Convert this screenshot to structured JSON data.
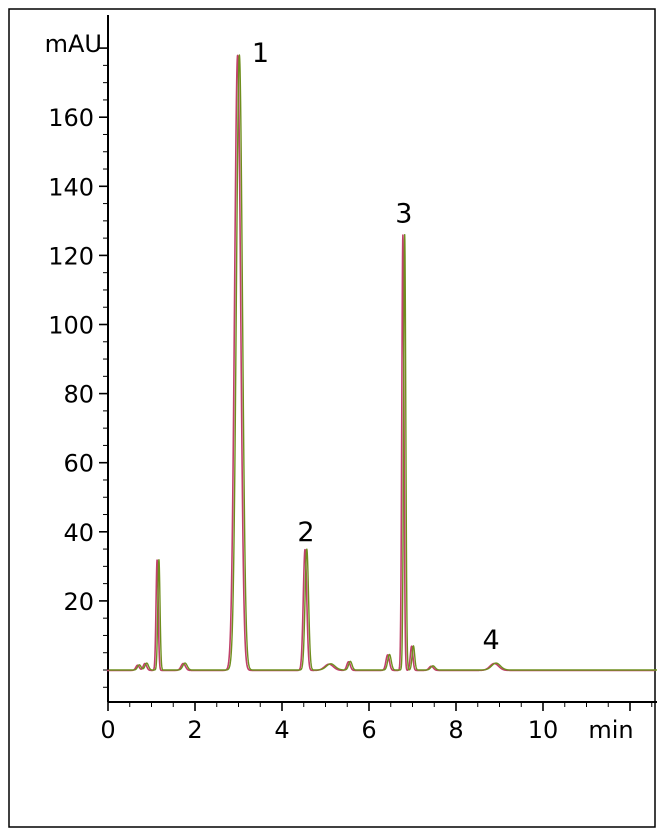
{
  "chart_data": {
    "type": "line",
    "title": "",
    "xlabel": "min",
    "ylabel": "mAU",
    "xlim": [
      0,
      12.6
    ],
    "ylim": [
      -9,
      185
    ],
    "x_ticks": [
      0,
      2,
      4,
      6,
      8,
      10
    ],
    "y_ticks": [
      20,
      40,
      60,
      80,
      100,
      120,
      140,
      160
    ],
    "grid": false,
    "colors": {
      "trace_a": "#c0406a",
      "trace_b": "#6f8f1e",
      "axis": "#000000"
    },
    "baseline": 0,
    "peaks": [
      {
        "x": 0.7,
        "y": 1.5,
        "sigma": 0.04,
        "label": ""
      },
      {
        "x": 0.87,
        "y": 2,
        "sigma": 0.04,
        "label": ""
      },
      {
        "x": 1.15,
        "y": 32,
        "sigma": 0.025,
        "label": ""
      },
      {
        "x": 1.75,
        "y": 2,
        "sigma": 0.05,
        "label": ""
      },
      {
        "x": 3.0,
        "y": 178,
        "sigma": 0.07,
        "label": "1"
      },
      {
        "x": 4.55,
        "y": 35,
        "sigma": 0.04,
        "label": "2"
      },
      {
        "x": 5.1,
        "y": 1.8,
        "sigma": 0.1,
        "label": ""
      },
      {
        "x": 5.55,
        "y": 2.5,
        "sigma": 0.04,
        "label": ""
      },
      {
        "x": 6.45,
        "y": 4.5,
        "sigma": 0.04,
        "label": ""
      },
      {
        "x": 6.8,
        "y": 126,
        "sigma": 0.025,
        "label": "3"
      },
      {
        "x": 7.0,
        "y": 7,
        "sigma": 0.03,
        "label": ""
      },
      {
        "x": 7.45,
        "y": 1.2,
        "sigma": 0.05,
        "label": ""
      },
      {
        "x": 8.9,
        "y": 2,
        "sigma": 0.1,
        "label": "4"
      }
    ]
  }
}
